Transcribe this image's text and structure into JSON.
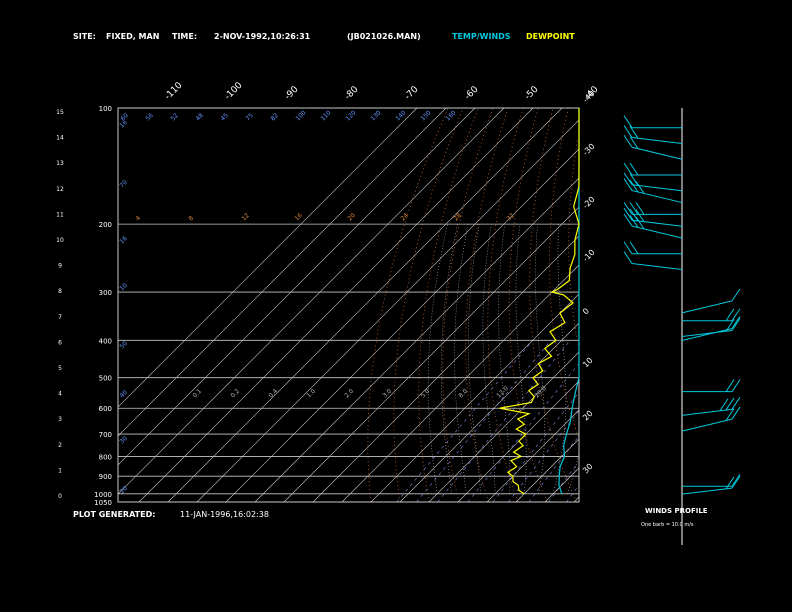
{
  "header": {
    "site_label": "SITE:",
    "site_value": "FIXED, MAN",
    "time_label": "TIME:",
    "time_value": "2-NOV-1992,10:26:31",
    "file": "(JB021026.MAN)",
    "temp_legend": "TEMP/WINDS",
    "dew_legend": "DEWPOINT"
  },
  "footer": {
    "generated_label": "PLOT GENERATED:",
    "generated_value": "11-JAN-1996,16:02:38"
  },
  "wind_panel": {
    "title": "WINDS PROFILE",
    "note": "One barb = 10.0 m/s"
  },
  "colors": {
    "temperature": "#00c8dc",
    "dewpoint": "#ffff00",
    "isotherm": "#c8c8c8",
    "dry_adiabat": "#c86428",
    "moist_adiabat": "#b4b4b4",
    "mixing_ratio": "#7878c8",
    "height_label": "#6496ff",
    "mixing_label": "#dc8c3c"
  },
  "chart_data": {
    "type": "line",
    "kind": "skew-T log-p",
    "pressure_levels": [
      1050,
      1000,
      900,
      800,
      700,
      600,
      500,
      400,
      300,
      200,
      100
    ],
    "left_height_ticks": [
      "0",
      "1",
      "2",
      "3",
      "4",
      "5",
      "6",
      "7",
      "8",
      "9",
      "10",
      "11",
      "12",
      "13",
      "14",
      "15"
    ],
    "isotherm_labels": [
      "-110",
      "-100",
      "-90",
      "-80",
      "-70",
      "-60",
      "-50",
      "-40",
      "-30",
      "-20",
      "-10",
      "0",
      "10",
      "20",
      "30"
    ],
    "right_height_labels": [
      "-40",
      "-30",
      "-20",
      "-10",
      "0",
      "10",
      "20",
      "30"
    ],
    "top_height_labels": [
      "60",
      "56",
      "52",
      "48",
      "45",
      "75",
      "82",
      "100",
      "110",
      "120",
      "130",
      "140",
      "150",
      "160"
    ],
    "upper_mixing_labels": [
      "4",
      "8",
      "12",
      "16",
      "20",
      "24",
      "28",
      "32"
    ],
    "mid_mixing_labels": [
      "0.1",
      "0.2",
      "0.4",
      "1.0",
      "2.0",
      "3.0",
      "5.0",
      "8.0",
      "12.0",
      "20.0"
    ],
    "left_edge_labels": [
      "16",
      "70",
      "16",
      "10",
      "50",
      "40",
      "30",
      "20"
    ],
    "series": [
      {
        "name": "TEMP/WINDS",
        "pressure": [
          1000,
          950,
          900,
          850,
          800,
          750,
          700,
          650,
          600,
          550,
          500,
          450,
          400,
          350,
          300,
          250,
          200,
          170,
          150,
          130,
          120,
          110,
          100
        ],
        "temperature": [
          13,
          9,
          6,
          3,
          1,
          -3,
          -6,
          -9,
          -13,
          -17,
          -20,
          -25,
          -30,
          -35,
          -42,
          -50,
          -57,
          -61,
          -63,
          -64,
          -66,
          -69,
          -73
        ]
      },
      {
        "name": "DEWPOINT",
        "pressure": [
          1000,
          980,
          950,
          930,
          900,
          880,
          850,
          820,
          800,
          780,
          750,
          730,
          700,
          680,
          660,
          640,
          620,
          600,
          580,
          560,
          540,
          520,
          500,
          480,
          460,
          440,
          420,
          400,
          380,
          360,
          340,
          320,
          305,
          300,
          295,
          280,
          260,
          240,
          220,
          200,
          180,
          160,
          140,
          120,
          100
        ],
        "dewpoint": [
          0,
          -3,
          -5,
          -8,
          -10,
          -13,
          -12,
          -16,
          -14,
          -18,
          -17,
          -20,
          -20,
          -25,
          -24,
          -28,
          -26,
          -38,
          -29,
          -30,
          -34,
          -33,
          -37,
          -36,
          -40,
          -38,
          -43,
          -42,
          -47,
          -45,
          -50,
          -49,
          -55,
          -60,
          -59,
          -58,
          -62,
          -65,
          -70,
          -74,
          -82,
          -87,
          -92,
          -96,
          -100
        ]
      }
    ],
    "winds": {
      "levels_rel": [
        0.95,
        0.91,
        0.87,
        0.83,
        0.79,
        0.76,
        0.73,
        0.7,
        0.67,
        0.63,
        0.59,
        0.48,
        0.46,
        0.42,
        0.41,
        0.28,
        0.22,
        0.18,
        0.04,
        0.02
      ],
      "speed_barbs": [
        1,
        2,
        2,
        2,
        2,
        3,
        3,
        3,
        3,
        2,
        1,
        1,
        2,
        2,
        1,
        2,
        3,
        2,
        1,
        2
      ]
    }
  }
}
